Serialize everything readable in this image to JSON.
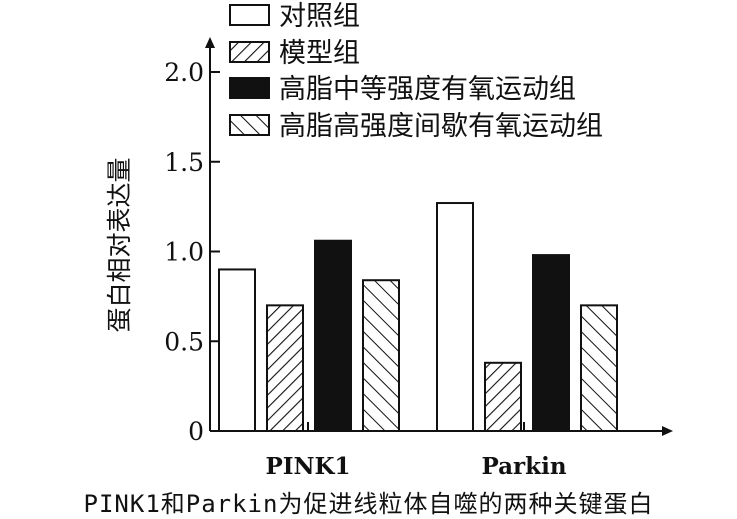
{
  "chart_data": {
    "type": "bar",
    "title": "",
    "xlabel": "",
    "ylabel": "蛋白相对表达量",
    "ylim": [
      0,
      2.0
    ],
    "yticks": [
      0,
      0.5,
      1.0,
      1.5,
      2.0
    ],
    "ytick_labels": [
      "0",
      "0.5",
      "1.0",
      "1.5",
      "2.0"
    ],
    "categories": [
      "PINK1",
      "Parkin"
    ],
    "series": [
      {
        "name": "对照组",
        "values": [
          0.9,
          1.27
        ],
        "fill": "white"
      },
      {
        "name": "模型组",
        "values": [
          0.7,
          0.38
        ],
        "fill": "hatch-right"
      },
      {
        "name": "高脂中等强度有氧运动组",
        "values": [
          1.06,
          0.98
        ],
        "fill": "black"
      },
      {
        "name": "高脂高强度间歇有氧运动组",
        "values": [
          0.84,
          0.7
        ],
        "fill": "hatch-left"
      }
    ],
    "legend_position": "top-right",
    "grid": false
  },
  "caption": "PINK1和Parkin为促进线粒体自噬的两种关键蛋白",
  "colors": {
    "ink": "#111111",
    "background": "#ffffff"
  }
}
